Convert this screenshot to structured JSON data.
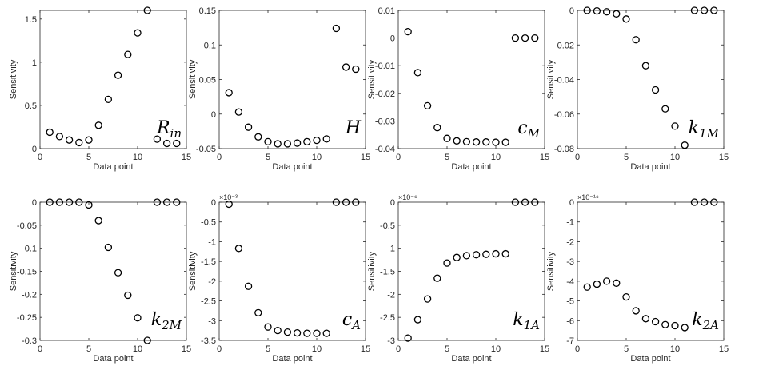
{
  "chart_data": [
    {
      "type": "scatter",
      "panel_label": "R",
      "panel_sub": "in",
      "xlabel": "Data point",
      "ylabel": "Sensitivity",
      "xlim": [
        0,
        15
      ],
      "xticks": [
        0,
        5,
        10,
        15
      ],
      "ylim": [
        0,
        1.6
      ],
      "yticks": [
        0,
        0.5,
        1,
        1.5
      ],
      "ytick_labels": [
        "0",
        "0.5",
        "1",
        "1.5"
      ],
      "exponent": "",
      "x": [
        1,
        2,
        3,
        4,
        5,
        6,
        7,
        8,
        9,
        10,
        11,
        12,
        13,
        14
      ],
      "y": [
        0.19,
        0.14,
        0.1,
        0.07,
        0.1,
        0.27,
        0.57,
        0.85,
        1.09,
        1.34,
        1.6,
        0.11,
        0.06,
        0.06
      ]
    },
    {
      "type": "scatter",
      "panel_label": "H",
      "panel_sub": "",
      "xlabel": "Data point",
      "ylabel": "Sensitivity",
      "xlim": [
        0,
        15
      ],
      "xticks": [
        0,
        5,
        10,
        15
      ],
      "ylim": [
        -0.05,
        0.15
      ],
      "yticks": [
        -0.05,
        0,
        0.05,
        0.1,
        0.15
      ],
      "ytick_labels": [
        "-0.05",
        "0",
        "0.05",
        "0.1",
        "0.15"
      ],
      "exponent": "",
      "x": [
        1,
        2,
        3,
        4,
        5,
        6,
        7,
        8,
        9,
        10,
        11,
        12,
        13,
        14
      ],
      "y": [
        0.031,
        0.003,
        -0.019,
        -0.033,
        -0.04,
        -0.043,
        -0.043,
        -0.042,
        -0.04,
        -0.038,
        -0.036,
        0.124,
        0.068,
        0.065
      ]
    },
    {
      "type": "scatter",
      "panel_label": "c",
      "panel_sub": "M",
      "xlabel": "Data point",
      "ylabel": "Sensitivity",
      "xlim": [
        0,
        15
      ],
      "xticks": [
        0,
        5,
        10,
        15
      ],
      "ylim": [
        -0.04,
        0.01
      ],
      "yticks": [
        -0.04,
        -0.03,
        -0.02,
        -0.01,
        0,
        0.01
      ],
      "ytick_labels": [
        "-0.04",
        "-0.03",
        "-0.02",
        "-0.01",
        "0",
        "0.01"
      ],
      "exponent": "",
      "x": [
        1,
        2,
        3,
        4,
        5,
        6,
        7,
        8,
        9,
        10,
        11,
        12,
        13,
        14
      ],
      "y": [
        0.0023,
        -0.0125,
        -0.0245,
        -0.0324,
        -0.0363,
        -0.0372,
        -0.0375,
        -0.0376,
        -0.0376,
        -0.0377,
        -0.0377,
        0,
        0,
        0
      ]
    },
    {
      "type": "scatter",
      "panel_label": "k",
      "panel_sub": "1M",
      "xlabel": "Data point",
      "ylabel": "Sensitivity",
      "xlim": [
        0,
        15
      ],
      "xticks": [
        0,
        5,
        10,
        15
      ],
      "ylim": [
        -0.08,
        0
      ],
      "yticks": [
        -0.08,
        -0.06,
        -0.04,
        -0.02,
        0
      ],
      "ytick_labels": [
        "-0.08",
        "-0.06",
        "-0.04",
        "-0.02",
        "0"
      ],
      "exponent": "",
      "x": [
        1,
        2,
        3,
        4,
        5,
        6,
        7,
        8,
        9,
        10,
        11,
        12,
        13,
        14
      ],
      "y": [
        0,
        -0.0003,
        -0.0008,
        -0.002,
        -0.005,
        -0.017,
        -0.032,
        -0.046,
        -0.057,
        -0.067,
        -0.078,
        0,
        0,
        0
      ]
    },
    {
      "type": "scatter",
      "panel_label": "k",
      "panel_sub": "2M",
      "xlabel": "Data point",
      "ylabel": "Sensitivity",
      "xlim": [
        0,
        15
      ],
      "xticks": [
        0,
        5,
        10,
        15
      ],
      "ylim": [
        -0.3,
        0
      ],
      "yticks": [
        -0.3,
        -0.25,
        -0.2,
        -0.15,
        -0.1,
        -0.05,
        0
      ],
      "ytick_labels": [
        "-0.3",
        "-0.25",
        "-0.2",
        "-0.15",
        "-0.1",
        "-0.05",
        "0"
      ],
      "exponent": "",
      "x": [
        1,
        2,
        3,
        4,
        5,
        6,
        7,
        8,
        9,
        10,
        11,
        12,
        13,
        14
      ],
      "y": [
        0,
        0,
        0,
        0,
        -0.006,
        -0.04,
        -0.098,
        -0.153,
        -0.202,
        -0.251,
        -0.3,
        0,
        0,
        0
      ]
    },
    {
      "type": "scatter",
      "panel_label": "c",
      "panel_sub": "A",
      "xlabel": "Data point",
      "ylabel": "Sensitivity",
      "xlim": [
        0,
        15
      ],
      "xticks": [
        0,
        5,
        10,
        15
      ],
      "ylim": [
        -3.5,
        0
      ],
      "yticks": [
        -3.5,
        -3,
        -2.5,
        -2,
        -1.5,
        -1,
        -0.5,
        0
      ],
      "ytick_labels": [
        "-3.5",
        "-3",
        "-2.5",
        "-2",
        "-1.5",
        "-1",
        "-0.5",
        "0"
      ],
      "exponent": "×10⁻³",
      "x": [
        1,
        2,
        3,
        4,
        5,
        6,
        7,
        8,
        9,
        10,
        11,
        12,
        13,
        14
      ],
      "y": [
        -0.05,
        -1.17,
        -2.13,
        -2.8,
        -3.16,
        -3.25,
        -3.29,
        -3.31,
        -3.32,
        -3.32,
        -3.32,
        0,
        0,
        0
      ]
    },
    {
      "type": "scatter",
      "panel_label": "k",
      "panel_sub": "1A",
      "xlabel": "Data point",
      "ylabel": "Sensitivity",
      "xlim": [
        0,
        15
      ],
      "xticks": [
        0,
        5,
        10,
        15
      ],
      "ylim": [
        -3,
        0
      ],
      "yticks": [
        -3,
        -2.5,
        -2,
        -1.5,
        -1,
        -0.5,
        0
      ],
      "ytick_labels": [
        "-3",
        "-2.5",
        "-2",
        "-1.5",
        "-1",
        "-0.5",
        "0"
      ],
      "exponent": "×10⁻⁶",
      "x": [
        1,
        2,
        3,
        4,
        5,
        6,
        7,
        8,
        9,
        10,
        11,
        12,
        13,
        14
      ],
      "y": [
        -2.95,
        -2.55,
        -2.1,
        -1.65,
        -1.32,
        -1.2,
        -1.16,
        -1.14,
        -1.13,
        -1.12,
        -1.12,
        0,
        0,
        0
      ]
    },
    {
      "type": "scatter",
      "panel_label": "k",
      "panel_sub": "2A",
      "xlabel": "Data point",
      "ylabel": "Sensitivity",
      "xlim": [
        0,
        15
      ],
      "xticks": [
        0,
        5,
        10,
        15
      ],
      "ylim": [
        -7,
        0
      ],
      "yticks": [
        -7,
        -6,
        -5,
        -4,
        -3,
        -2,
        -1,
        0
      ],
      "ytick_labels": [
        "-7",
        "-6",
        "-5",
        "-4",
        "-3",
        "-2",
        "-1",
        "0"
      ],
      "exponent": "×10⁻¹⁸",
      "x": [
        1,
        2,
        3,
        4,
        5,
        6,
        7,
        8,
        9,
        10,
        11,
        12,
        13,
        14
      ],
      "y": [
        -4.3,
        -4.15,
        -4.0,
        -4.1,
        -4.8,
        -5.5,
        -5.9,
        -6.05,
        -6.2,
        -6.25,
        -6.35,
        0,
        0,
        0
      ]
    }
  ]
}
